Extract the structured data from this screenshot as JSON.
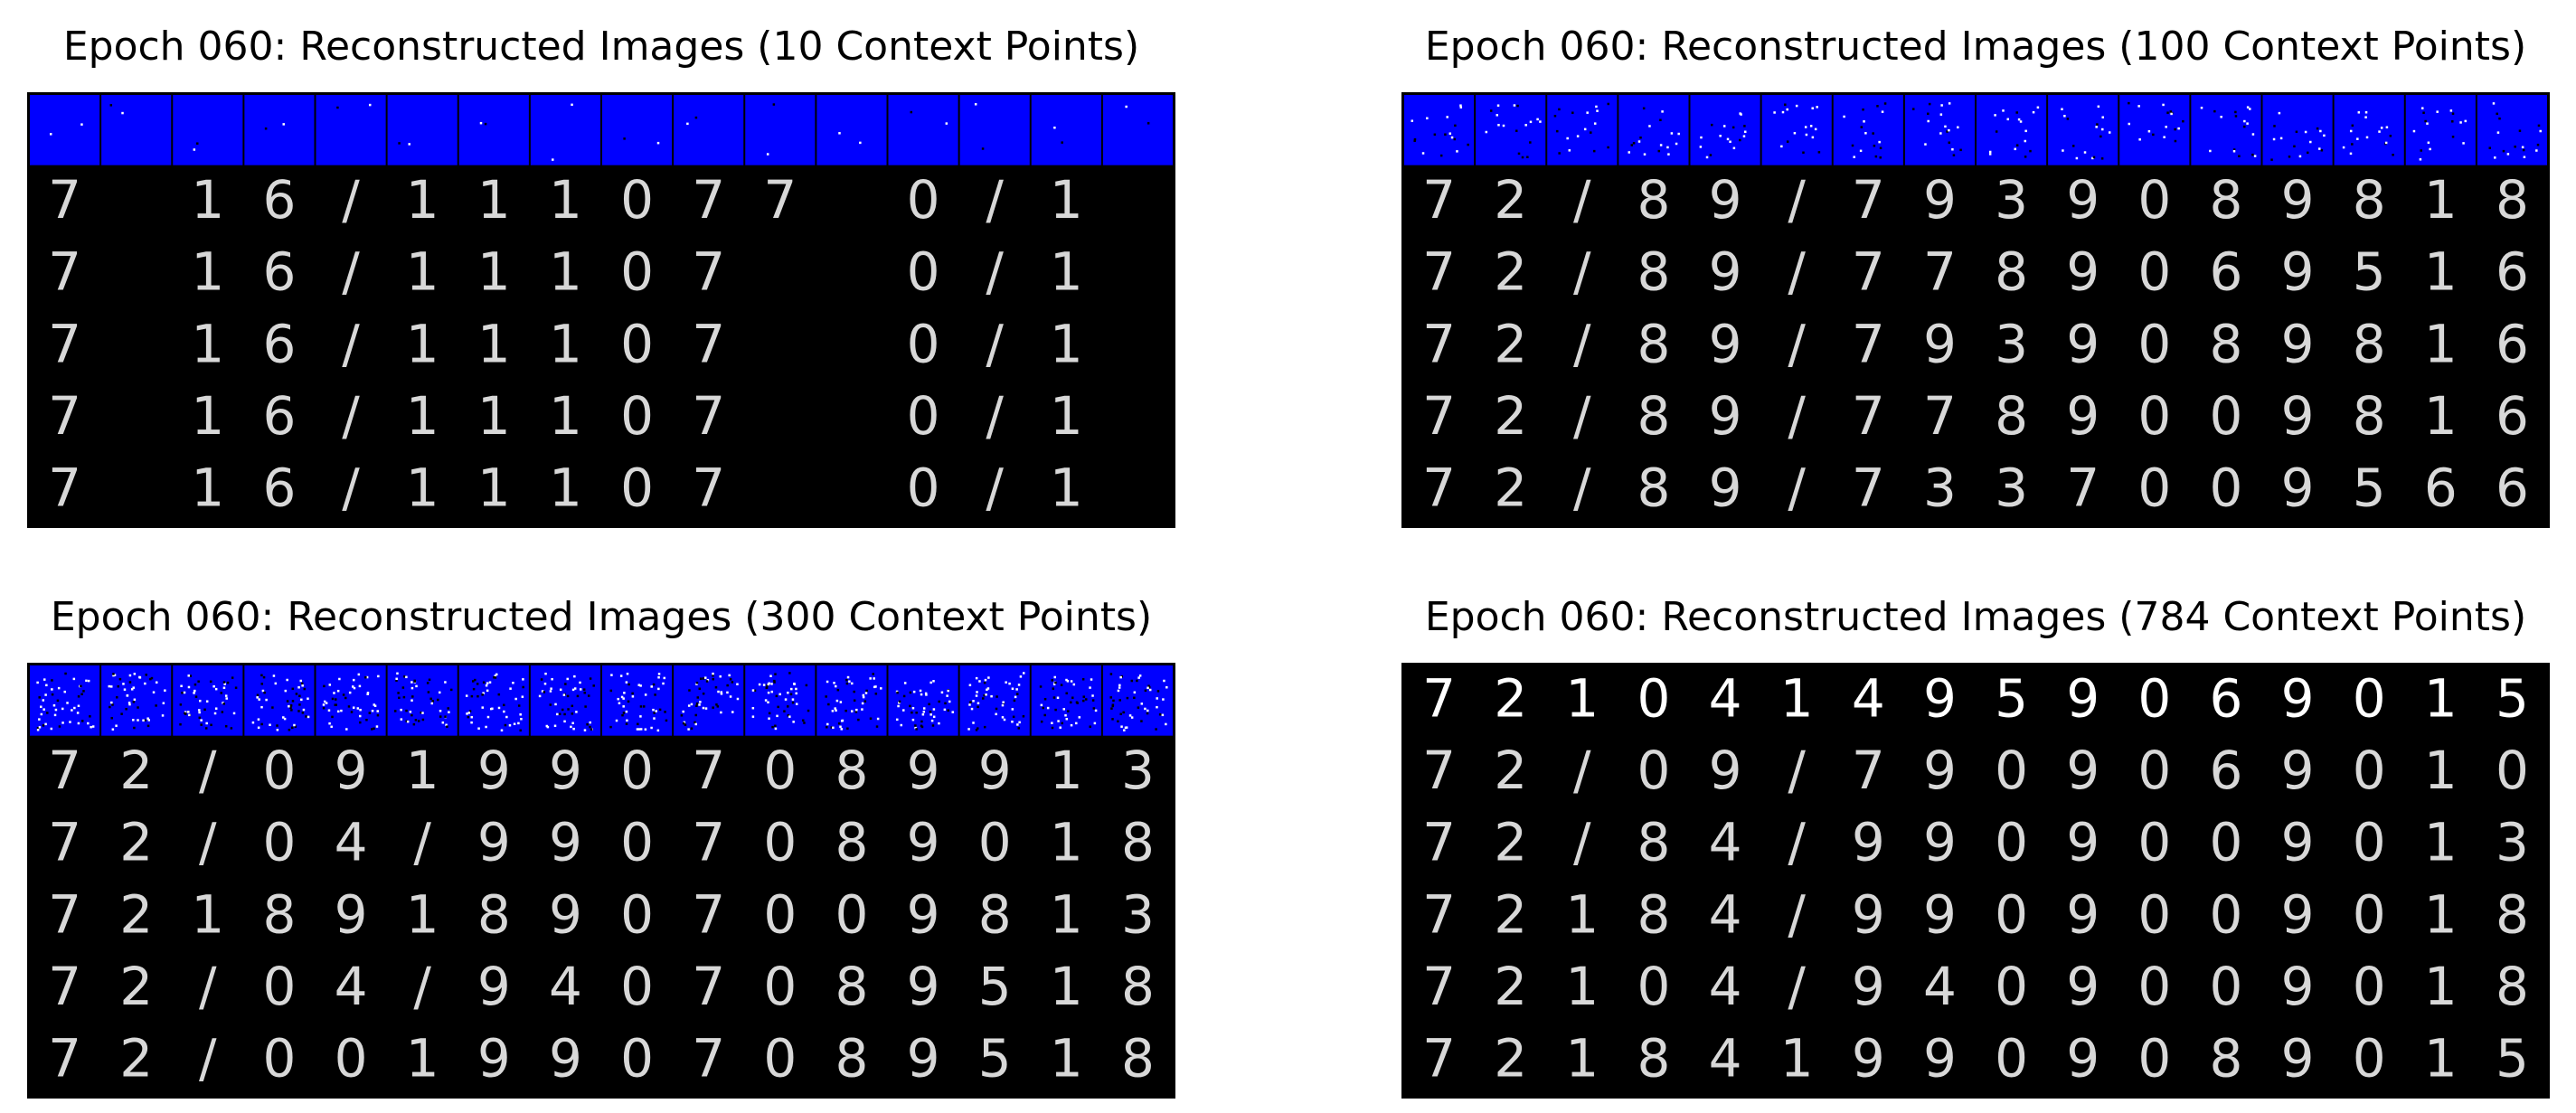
{
  "panels": [
    {
      "title": "Epoch 060: Reconstructed Images (10 Context Points)",
      "context_points": 10,
      "context_row_color": "#0000ff",
      "rows": [
        [
          "7",
          "",
          "1",
          "6",
          "/",
          "1",
          "1",
          "1",
          "0",
          "7",
          "7",
          "",
          "0",
          "/",
          "1",
          ""
        ],
        [
          "7",
          "",
          "1",
          "6",
          "/",
          "1",
          "1",
          "1",
          "0",
          "7",
          "",
          "",
          "0",
          "/",
          "1",
          ""
        ],
        [
          "7",
          "",
          "1",
          "6",
          "/",
          "1",
          "1",
          "1",
          "0",
          "7",
          "",
          "",
          "0",
          "/",
          "1",
          ""
        ],
        [
          "7",
          "",
          "1",
          "6",
          "/",
          "1",
          "1",
          "1",
          "0",
          "7",
          "",
          "",
          "0",
          "/",
          "1",
          ""
        ],
        [
          "7",
          "",
          "1",
          "6",
          "/",
          "1",
          "1",
          "1",
          "0",
          "7",
          "",
          "",
          "0",
          "/",
          "1",
          ""
        ]
      ]
    },
    {
      "title": "Epoch 060: Reconstructed Images (100 Context Points)",
      "context_points": 100,
      "context_row_color": "#0000ff",
      "rows": [
        [
          "7",
          "2",
          "/",
          "8",
          "9",
          "/",
          "7",
          "9",
          "3",
          "9",
          "0",
          "8",
          "9",
          "8",
          "1",
          "8"
        ],
        [
          "7",
          "2",
          "/",
          "8",
          "9",
          "/",
          "7",
          "7",
          "8",
          "9",
          "0",
          "6",
          "9",
          "5",
          "1",
          "6"
        ],
        [
          "7",
          "2",
          "/",
          "8",
          "9",
          "/",
          "7",
          "9",
          "3",
          "9",
          "0",
          "8",
          "9",
          "8",
          "1",
          "6"
        ],
        [
          "7",
          "2",
          "/",
          "8",
          "9",
          "/",
          "7",
          "7",
          "8",
          "9",
          "0",
          "0",
          "9",
          "8",
          "1",
          "6"
        ],
        [
          "7",
          "2",
          "/",
          "8",
          "9",
          "/",
          "7",
          "3",
          "3",
          "7",
          "0",
          "0",
          "9",
          "5",
          "6",
          "6"
        ]
      ]
    },
    {
      "title": "Epoch 060: Reconstructed Images (300 Context Points)",
      "context_points": 300,
      "context_row_color": "#0000ff",
      "rows": [
        [
          "7",
          "2",
          "/",
          "0",
          "9",
          "1",
          "9",
          "9",
          "0",
          "7",
          "0",
          "8",
          "9",
          "9",
          "1",
          "3"
        ],
        [
          "7",
          "2",
          "/",
          "0",
          "4",
          "/",
          "9",
          "9",
          "0",
          "7",
          "0",
          "8",
          "9",
          "0",
          "1",
          "8"
        ],
        [
          "7",
          "2",
          "1",
          "8",
          "9",
          "1",
          "8",
          "9",
          "0",
          "7",
          "0",
          "0",
          "9",
          "8",
          "1",
          "3"
        ],
        [
          "7",
          "2",
          "/",
          "0",
          "4",
          "/",
          "9",
          "4",
          "0",
          "7",
          "0",
          "8",
          "9",
          "5",
          "1",
          "8"
        ],
        [
          "7",
          "2",
          "/",
          "0",
          "0",
          "1",
          "9",
          "9",
          "0",
          "7",
          "0",
          "8",
          "9",
          "5",
          "1",
          "8"
        ]
      ]
    },
    {
      "title": "Epoch 060: Reconstructed Images (784 Context Points)",
      "context_points": 784,
      "context_row_color": "#000000",
      "rows": [
        [
          "7",
          "2",
          "1",
          "0",
          "4",
          "1",
          "4",
          "9",
          "5",
          "9",
          "0",
          "6",
          "9",
          "0",
          "1",
          "5"
        ],
        [
          "7",
          "2",
          "/",
          "0",
          "9",
          "/",
          "7",
          "9",
          "0",
          "9",
          "0",
          "6",
          "9",
          "0",
          "1",
          "0"
        ],
        [
          "7",
          "2",
          "/",
          "8",
          "4",
          "/",
          "9",
          "9",
          "0",
          "9",
          "0",
          "0",
          "9",
          "0",
          "1",
          "3"
        ],
        [
          "7",
          "2",
          "1",
          "8",
          "4",
          "/",
          "9",
          "9",
          "0",
          "9",
          "0",
          "0",
          "9",
          "0",
          "1",
          "8"
        ],
        [
          "7",
          "2",
          "1",
          "0",
          "4",
          "/",
          "9",
          "4",
          "0",
          "9",
          "0",
          "0",
          "9",
          "0",
          "1",
          "8"
        ],
        [
          "7",
          "2",
          "1",
          "8",
          "4",
          "1",
          "9",
          "9",
          "0",
          "9",
          "0",
          "8",
          "9",
          "0",
          "1",
          "5"
        ]
      ]
    }
  ]
}
